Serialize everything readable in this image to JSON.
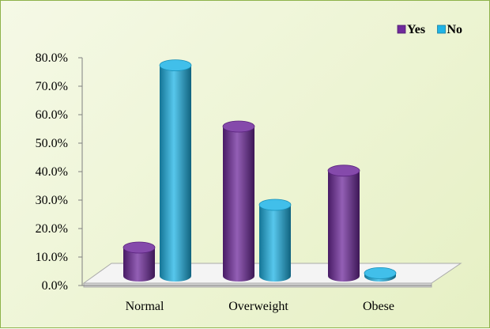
{
  "chart_data": {
    "type": "bar",
    "categories": [
      "Normal",
      "Overweight",
      "Obese"
    ],
    "series": [
      {
        "name": "Yes",
        "values": [
          10.0,
          52.5,
          37.0
        ],
        "color": "#6f2a9c"
      },
      {
        "name": "No",
        "values": [
          74.0,
          25.0,
          1.0
        ],
        "color": "#1fb4e6"
      }
    ],
    "yticks": [
      "0.0%",
      "10.0%",
      "20.0%",
      "30.0%",
      "40.0%",
      "50.0%",
      "60.0%",
      "70.0%",
      "80.0%"
    ],
    "ylim": [
      0,
      80
    ],
    "legend_position": "top-right",
    "style": "3d-cylinder",
    "background_color": "#eef4d6",
    "border_color": "#8db24a"
  }
}
